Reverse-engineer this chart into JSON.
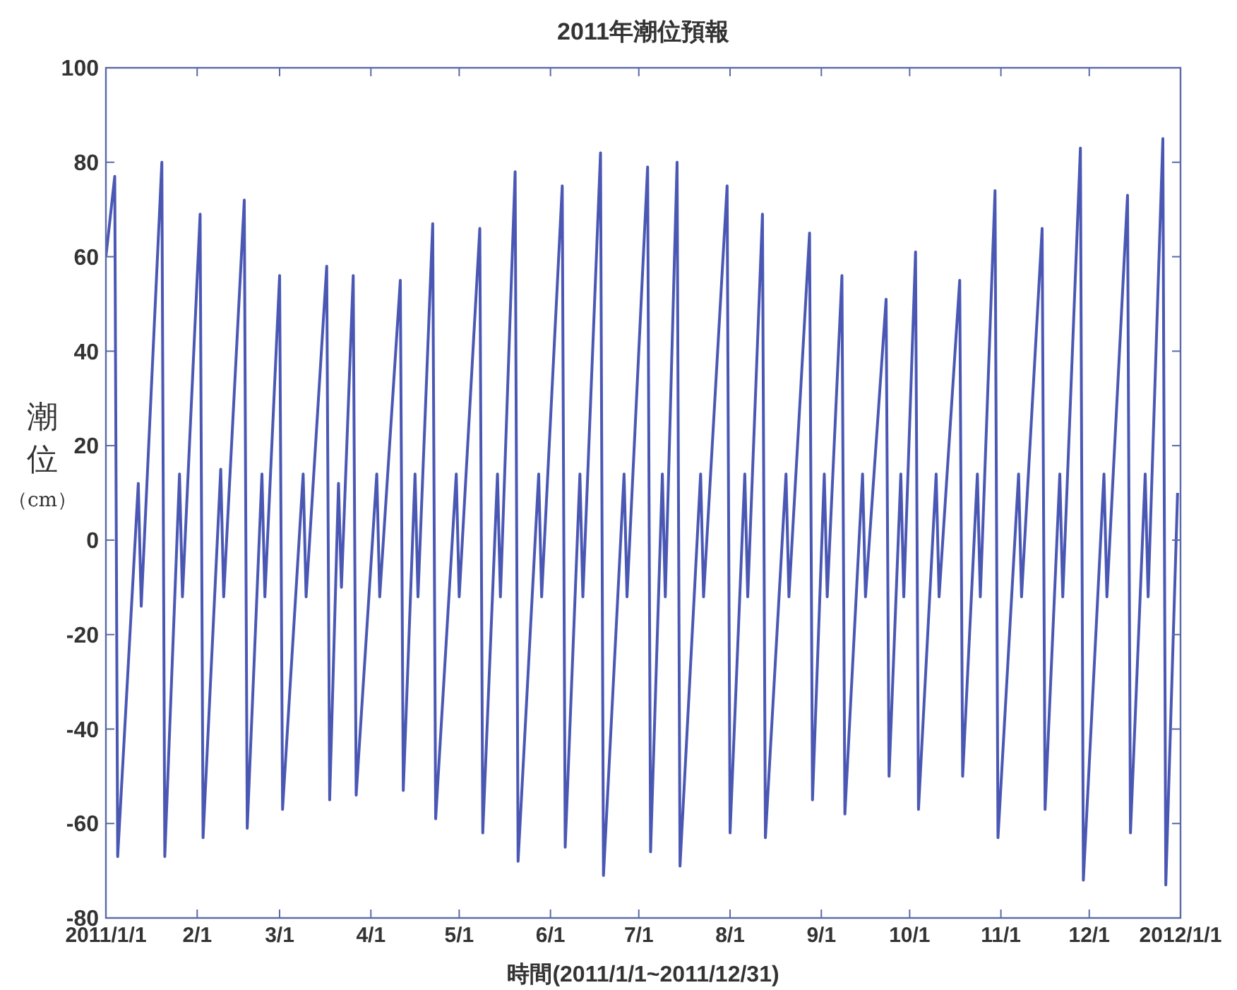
{
  "chart_data": {
    "type": "line",
    "title": "2011年潮位預報",
    "xlabel": "時間(2011/1/1~2011/12/31)",
    "ylabel": "潮位（cm）",
    "xlim": [
      "2011-01-01",
      "2012-01-01"
    ],
    "xticks": [
      {
        "value": "2011-01-01",
        "label": "2011/1/1"
      },
      {
        "value": "2011-02-01",
        "label": "2/1"
      },
      {
        "value": "2011-03-01",
        "label": "3/1"
      },
      {
        "value": "2011-04-01",
        "label": "4/1"
      },
      {
        "value": "2011-05-01",
        "label": "5/1"
      },
      {
        "value": "2011-06-01",
        "label": "6/1"
      },
      {
        "value": "2011-07-01",
        "label": "7/1"
      },
      {
        "value": "2011-08-01",
        "label": "8/1"
      },
      {
        "value": "2011-09-01",
        "label": "9/1"
      },
      {
        "value": "2011-10-01",
        "label": "10/1"
      },
      {
        "value": "2011-11-01",
        "label": "11/1"
      },
      {
        "value": "2011-12-01",
        "label": "12/1"
      },
      {
        "value": "2012-01-01",
        "label": "2012/1/1"
      }
    ],
    "ylim": [
      -80,
      100
    ],
    "yticks": [
      -80,
      -60,
      -40,
      -20,
      0,
      20,
      40,
      60,
      80,
      100
    ],
    "grid": false,
    "marker": "none",
    "line_style": "solid",
    "series": [
      {
        "color": "#4a58b4",
        "x": [
          "2011-01-01",
          "2011-01-04",
          "2011-01-05",
          "2011-01-12",
          "2011-01-13",
          "2011-01-20",
          "2011-01-21",
          "2011-01-26",
          "2011-01-27",
          "2011-02-02",
          "2011-02-03",
          "2011-02-09",
          "2011-02-10",
          "2011-02-17",
          "2011-02-18",
          "2011-02-23",
          "2011-02-24",
          "2011-03-01",
          "2011-03-02",
          "2011-03-09",
          "2011-03-10",
          "2011-03-17",
          "2011-03-18",
          "2011-03-21",
          "2011-03-22",
          "2011-03-26",
          "2011-03-27",
          "2011-04-03",
          "2011-04-04",
          "2011-04-11",
          "2011-04-12",
          "2011-04-16",
          "2011-04-17",
          "2011-04-22",
          "2011-04-23",
          "2011-04-30",
          "2011-05-01",
          "2011-05-08",
          "2011-05-09",
          "2011-05-14",
          "2011-05-15",
          "2011-05-20",
          "2011-05-21",
          "2011-05-28",
          "2011-05-29",
          "2011-06-05",
          "2011-06-06",
          "2011-06-11",
          "2011-06-12",
          "2011-06-18",
          "2011-06-19",
          "2011-06-26",
          "2011-06-27",
          "2011-07-04",
          "2011-07-05",
          "2011-07-09",
          "2011-07-10",
          "2011-07-14",
          "2011-07-15",
          "2011-07-22",
          "2011-07-23",
          "2011-07-31",
          "2011-08-01",
          "2011-08-06",
          "2011-08-07",
          "2011-08-12",
          "2011-08-13",
          "2011-08-20",
          "2011-08-21",
          "2011-08-28",
          "2011-08-29",
          "2011-09-02",
          "2011-09-03",
          "2011-09-08",
          "2011-09-09",
          "2011-09-15",
          "2011-09-16",
          "2011-09-23",
          "2011-09-24",
          "2011-09-28",
          "2011-09-29",
          "2011-10-03",
          "2011-10-04",
          "2011-10-10",
          "2011-10-11",
          "2011-10-18",
          "2011-10-19",
          "2011-10-24",
          "2011-10-25",
          "2011-10-30",
          "2011-10-31",
          "2011-11-07",
          "2011-11-08",
          "2011-11-15",
          "2011-11-16",
          "2011-11-21",
          "2011-11-22",
          "2011-11-28",
          "2011-11-29",
          "2011-12-06",
          "2011-12-07",
          "2011-12-14",
          "2011-12-15",
          "2011-12-20",
          "2011-12-21",
          "2011-12-26",
          "2011-12-27",
          "2011-12-31"
        ],
        "values": [
          60,
          77,
          -67,
          12,
          -14,
          80,
          -67,
          14,
          -12,
          69,
          -63,
          15,
          -12,
          72,
          -61,
          14,
          -12,
          56,
          -57,
          14,
          -12,
          58,
          -55,
          12,
          -10,
          56,
          -54,
          14,
          -12,
          55,
          -53,
          14,
          -12,
          67,
          -59,
          14,
          -12,
          66,
          -62,
          14,
          -12,
          78,
          -68,
          14,
          -12,
          75,
          -65,
          14,
          -12,
          82,
          -71,
          14,
          -12,
          79,
          -66,
          14,
          -12,
          80,
          -69,
          14,
          -12,
          75,
          -62,
          14,
          -12,
          69,
          -63,
          14,
          -12,
          65,
          -55,
          14,
          -12,
          56,
          -58,
          14,
          -12,
          51,
          -50,
          14,
          -12,
          61,
          -57,
          14,
          -12,
          55,
          -50,
          14,
          -12,
          74,
          -63,
          14,
          -12,
          66,
          -57,
          14,
          -12,
          83,
          -72,
          14,
          -12,
          73,
          -62,
          14,
          -12,
          85,
          -73,
          10
        ]
      }
    ]
  }
}
